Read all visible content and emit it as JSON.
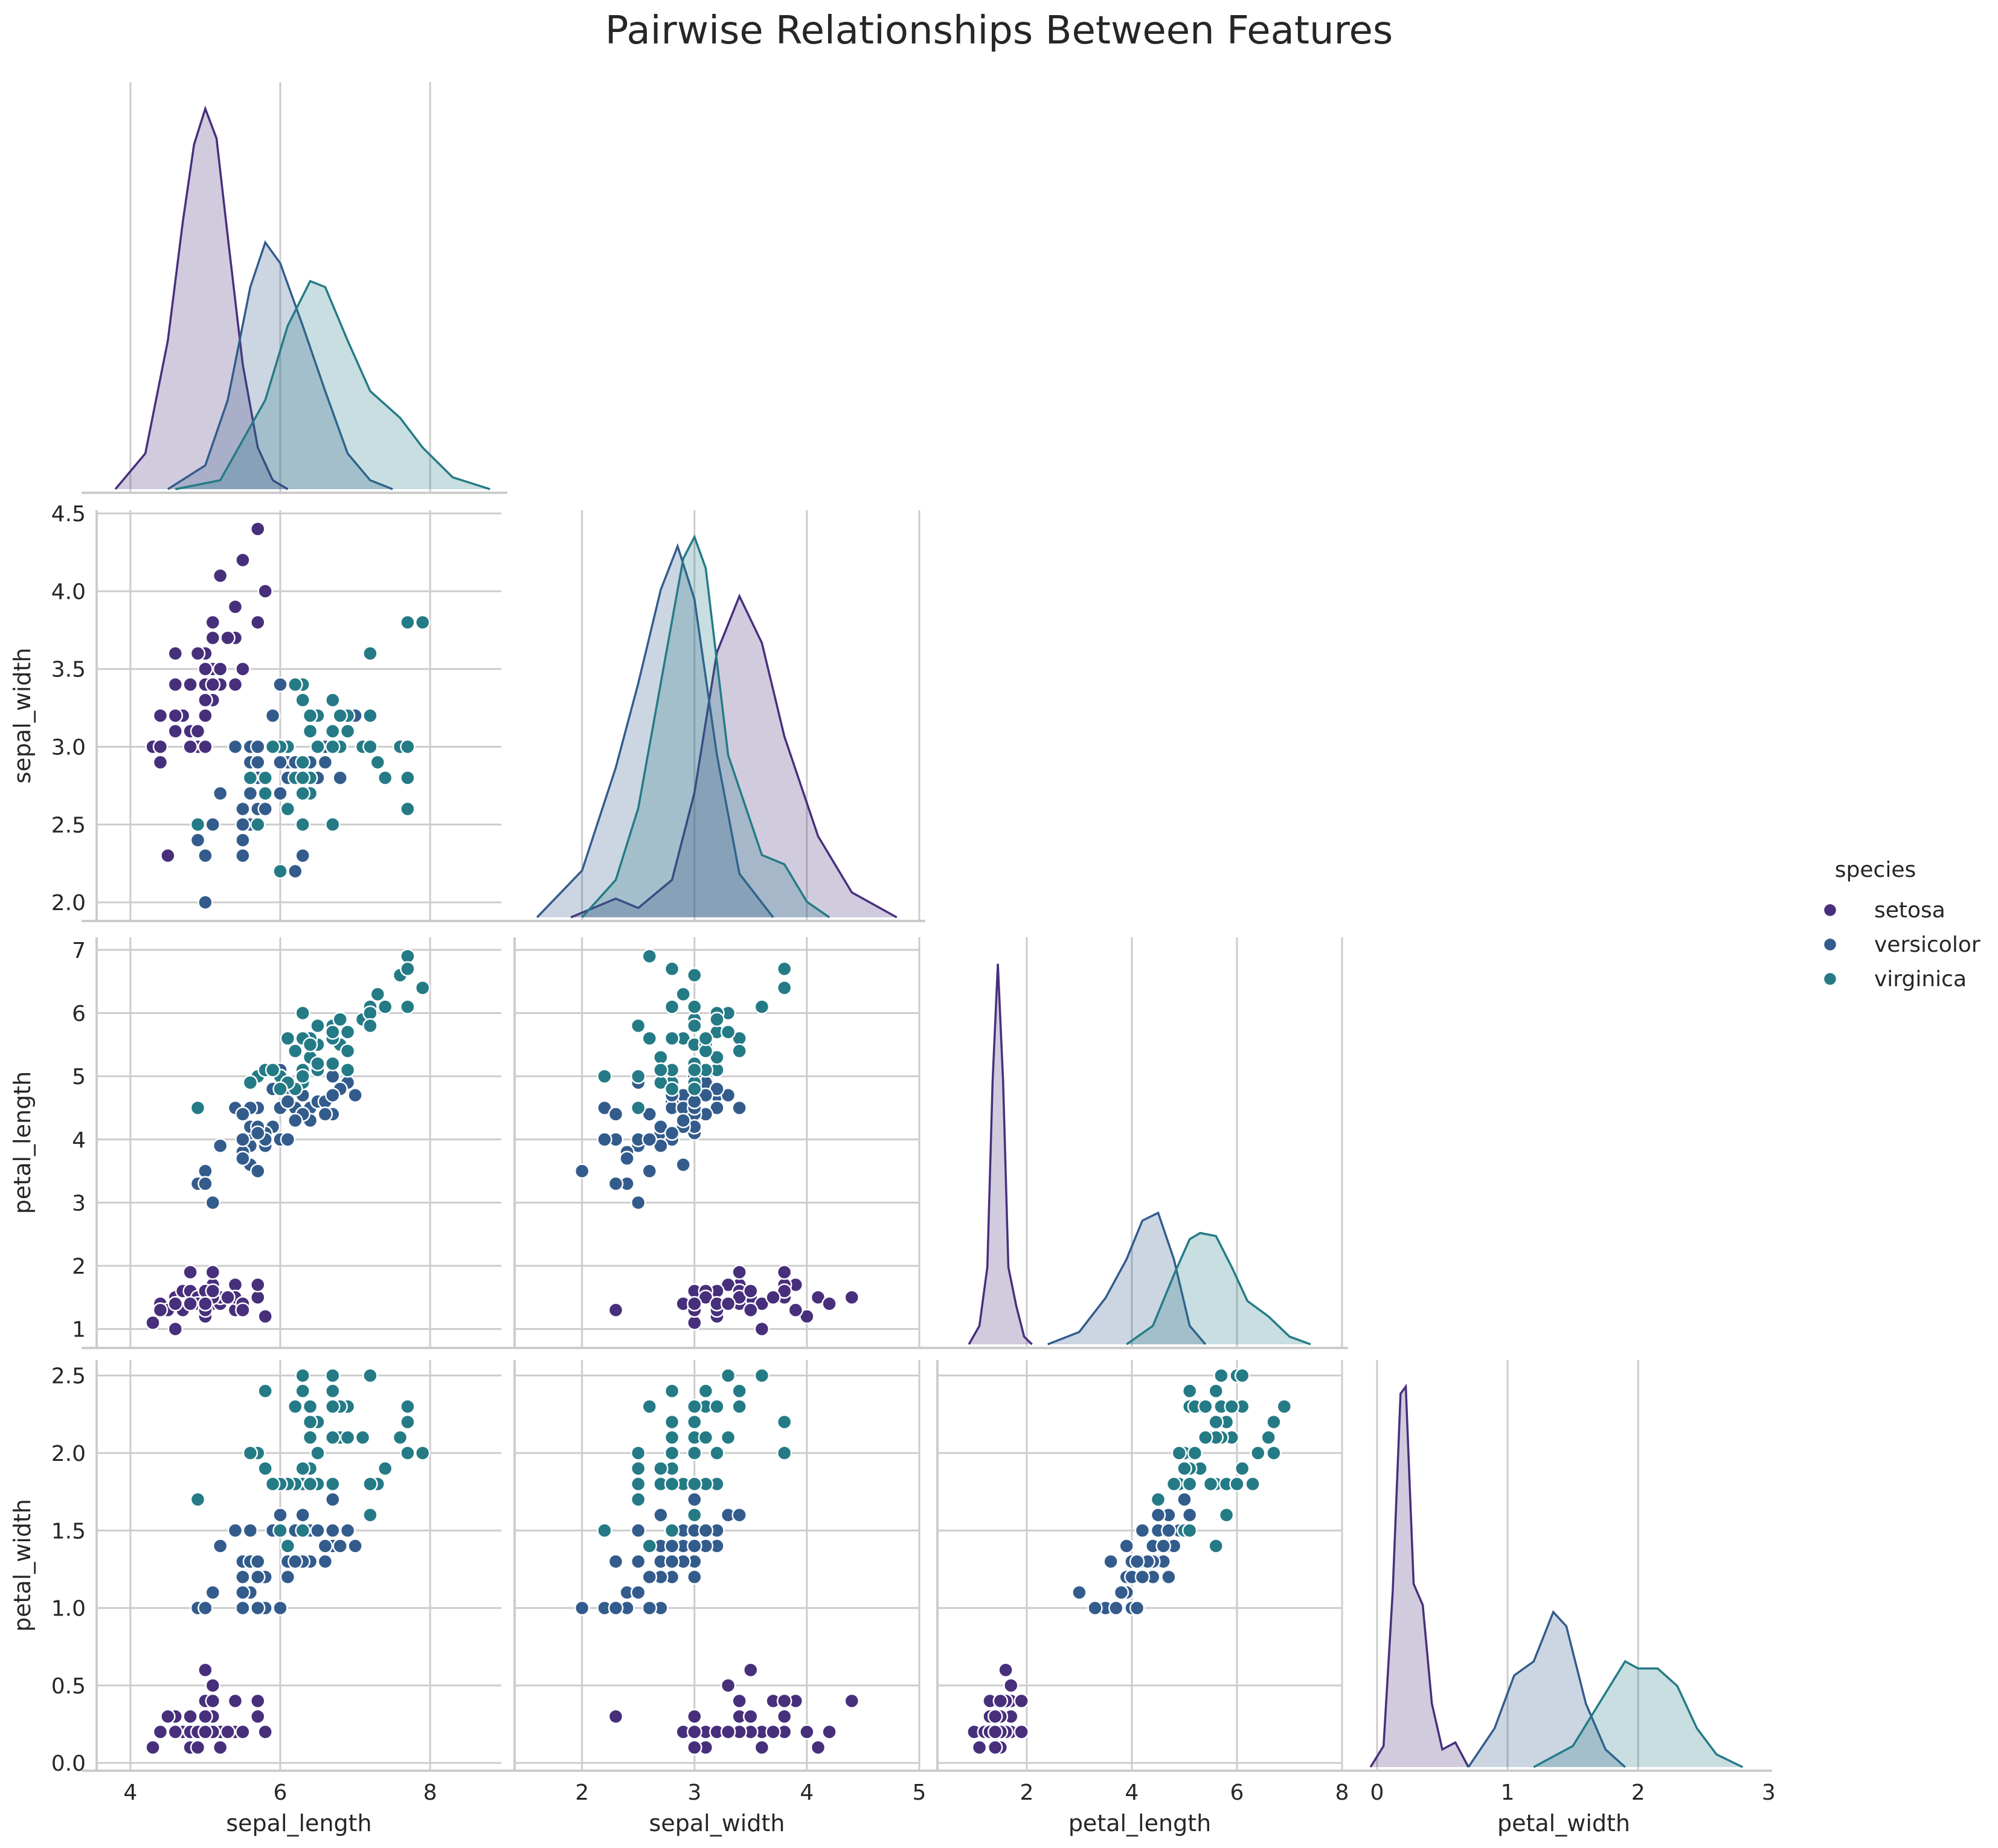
{
  "chart_data": {
    "type": "scatter",
    "title": "Pairwise Relationships Between Features",
    "variables": [
      "sepal_length",
      "sepal_width",
      "petal_length",
      "petal_width"
    ],
    "axes": {
      "sepal_length": {
        "lim": [
          3.55,
          8.95
        ],
        "ticks": [
          4,
          6,
          8
        ]
      },
      "sepal_width": {
        "lim": [
          1.4,
          5.0
        ],
        "ticks": [
          2,
          3,
          4,
          5
        ]
      },
      "sepal_width_y": {
        "lim": [
          1.88,
          4.52
        ],
        "ticks": [
          2.0,
          2.5,
          3.0,
          3.5,
          4.0,
          4.5
        ]
      },
      "petal_length": {
        "lim": [
          0.3,
          8.0
        ],
        "ticks": [
          2,
          4,
          6,
          8
        ],
        "ylim": [
          0.7,
          7.2
        ],
        "yticks": [
          1,
          2,
          3,
          4,
          5,
          6,
          7
        ]
      },
      "petal_width": {
        "lim": [
          -0.12,
          2.98
        ],
        "ticks": [
          0,
          1,
          2,
          3
        ],
        "ylim": [
          -0.05,
          2.6
        ],
        "yticks": [
          0.0,
          0.5,
          1.0,
          1.5,
          2.0,
          2.5
        ]
      }
    },
    "grid": true,
    "legend": {
      "title": "species",
      "placement": "right",
      "entries": [
        "setosa",
        "versicolor",
        "virginica"
      ]
    },
    "colors": {
      "setosa": "#482f7c",
      "versicolor": "#335c8c",
      "virginica": "#247b86"
    },
    "kde": {
      "sepal_length": {
        "setosa": {
          "x": [
            3.8,
            4.2,
            4.5,
            4.7,
            4.85,
            5.0,
            5.15,
            5.3,
            5.5,
            5.7,
            5.9,
            6.1
          ],
          "y": [
            0.0,
            0.12,
            0.5,
            0.9,
            1.16,
            1.28,
            1.18,
            0.85,
            0.42,
            0.14,
            0.03,
            0.0
          ]
        },
        "versicolor": {
          "x": [
            4.5,
            5.0,
            5.3,
            5.6,
            5.8,
            6.0,
            6.3,
            6.6,
            6.9,
            7.2,
            7.5
          ],
          "y": [
            0.0,
            0.08,
            0.3,
            0.68,
            0.83,
            0.76,
            0.55,
            0.33,
            0.12,
            0.03,
            0.0
          ]
        },
        "virginica": {
          "x": [
            4.6,
            5.2,
            5.8,
            6.1,
            6.4,
            6.6,
            6.9,
            7.2,
            7.6,
            7.9,
            8.3,
            8.8
          ],
          "y": [
            0.0,
            0.03,
            0.3,
            0.55,
            0.7,
            0.68,
            0.5,
            0.33,
            0.24,
            0.14,
            0.04,
            0.0
          ]
        }
      },
      "sepal_width": {
        "setosa": {
          "x": [
            1.9,
            2.3,
            2.5,
            2.8,
            3.0,
            3.2,
            3.4,
            3.6,
            3.8,
            4.1,
            4.4,
            4.8
          ],
          "y": [
            0.0,
            0.06,
            0.03,
            0.12,
            0.4,
            0.85,
            1.03,
            0.88,
            0.58,
            0.26,
            0.08,
            0.0
          ]
        },
        "versicolor": {
          "x": [
            1.6,
            2.0,
            2.3,
            2.5,
            2.7,
            2.85,
            3.0,
            3.2,
            3.4,
            3.7
          ],
          "y": [
            0.0,
            0.15,
            0.48,
            0.75,
            1.05,
            1.19,
            1.02,
            0.52,
            0.14,
            0.0
          ]
        },
        "virginica": {
          "x": [
            2.0,
            2.3,
            2.5,
            2.7,
            2.9,
            3.0,
            3.1,
            3.3,
            3.6,
            3.8,
            4.0,
            4.2
          ],
          "y": [
            0.0,
            0.12,
            0.35,
            0.75,
            1.15,
            1.22,
            1.12,
            0.52,
            0.2,
            0.17,
            0.05,
            0.0
          ]
        }
      },
      "petal_length": {
        "setosa": {
          "x": [
            0.9,
            1.1,
            1.25,
            1.35,
            1.45,
            1.55,
            1.65,
            1.8,
            1.95,
            2.1
          ],
          "y": [
            0.0,
            0.12,
            0.5,
            1.7,
            2.46,
            1.7,
            0.5,
            0.25,
            0.05,
            0.0
          ]
        },
        "versicolor": {
          "x": [
            2.4,
            3.0,
            3.5,
            3.9,
            4.2,
            4.5,
            4.8,
            5.1,
            5.4
          ],
          "y": [
            0.0,
            0.08,
            0.3,
            0.55,
            0.8,
            0.85,
            0.55,
            0.12,
            0.0
          ]
        },
        "virginica": {
          "x": [
            3.9,
            4.4,
            4.8,
            5.1,
            5.3,
            5.6,
            5.9,
            6.2,
            6.6,
            7.0,
            7.4
          ],
          "y": [
            0.0,
            0.12,
            0.45,
            0.68,
            0.72,
            0.7,
            0.5,
            0.28,
            0.18,
            0.05,
            0.0
          ]
        }
      },
      "petal_width": {
        "setosa": {
          "x": [
            -0.05,
            0.05,
            0.12,
            0.18,
            0.22,
            0.28,
            0.35,
            0.42,
            0.5,
            0.6,
            0.7
          ],
          "y": [
            0.0,
            0.3,
            2.5,
            5.3,
            5.4,
            2.6,
            2.3,
            0.9,
            0.25,
            0.35,
            0.0
          ]
        },
        "versicolor": {
          "x": [
            0.7,
            0.9,
            1.05,
            1.2,
            1.35,
            1.45,
            1.6,
            1.75,
            1.9
          ],
          "y": [
            0.0,
            0.55,
            1.3,
            1.5,
            2.2,
            2.0,
            0.9,
            0.25,
            0.0
          ]
        },
        "virginica": {
          "x": [
            1.2,
            1.5,
            1.7,
            1.9,
            2.0,
            2.15,
            2.3,
            2.45,
            2.6,
            2.8
          ],
          "y": [
            0.0,
            0.3,
            0.9,
            1.5,
            1.4,
            1.4,
            1.15,
            0.55,
            0.18,
            0.0
          ]
        }
      }
    },
    "points": {
      "setosa": [
        [
          5.1,
          3.5,
          1.4,
          0.2
        ],
        [
          4.9,
          3.0,
          1.4,
          0.2
        ],
        [
          4.7,
          3.2,
          1.3,
          0.2
        ],
        [
          4.6,
          3.1,
          1.5,
          0.2
        ],
        [
          5.0,
          3.6,
          1.4,
          0.2
        ],
        [
          5.4,
          3.9,
          1.7,
          0.4
        ],
        [
          4.6,
          3.4,
          1.4,
          0.3
        ],
        [
          5.0,
          3.4,
          1.5,
          0.2
        ],
        [
          4.4,
          2.9,
          1.4,
          0.2
        ],
        [
          4.9,
          3.1,
          1.5,
          0.1
        ],
        [
          5.4,
          3.7,
          1.5,
          0.2
        ],
        [
          4.8,
          3.4,
          1.6,
          0.2
        ],
        [
          4.8,
          3.0,
          1.4,
          0.1
        ],
        [
          4.3,
          3.0,
          1.1,
          0.1
        ],
        [
          5.8,
          4.0,
          1.2,
          0.2
        ],
        [
          5.7,
          4.4,
          1.5,
          0.4
        ],
        [
          5.4,
          3.9,
          1.3,
          0.4
        ],
        [
          5.1,
          3.5,
          1.4,
          0.3
        ],
        [
          5.7,
          3.8,
          1.7,
          0.3
        ],
        [
          5.1,
          3.8,
          1.5,
          0.3
        ],
        [
          5.4,
          3.4,
          1.7,
          0.2
        ],
        [
          5.1,
          3.7,
          1.5,
          0.4
        ],
        [
          4.6,
          3.6,
          1.0,
          0.2
        ],
        [
          5.1,
          3.3,
          1.7,
          0.5
        ],
        [
          4.8,
          3.4,
          1.9,
          0.2
        ],
        [
          5.0,
          3.0,
          1.6,
          0.2
        ],
        [
          5.0,
          3.4,
          1.6,
          0.4
        ],
        [
          5.2,
          3.5,
          1.5,
          0.2
        ],
        [
          5.2,
          3.4,
          1.4,
          0.2
        ],
        [
          4.7,
          3.2,
          1.6,
          0.2
        ],
        [
          4.8,
          3.1,
          1.6,
          0.2
        ],
        [
          5.4,
          3.4,
          1.5,
          0.4
        ],
        [
          5.2,
          4.1,
          1.5,
          0.1
        ],
        [
          5.5,
          4.2,
          1.4,
          0.2
        ],
        [
          4.9,
          3.1,
          1.5,
          0.2
        ],
        [
          5.0,
          3.2,
          1.2,
          0.2
        ],
        [
          5.5,
          3.5,
          1.3,
          0.2
        ],
        [
          4.9,
          3.6,
          1.4,
          0.1
        ],
        [
          4.4,
          3.0,
          1.3,
          0.2
        ],
        [
          5.1,
          3.4,
          1.5,
          0.2
        ],
        [
          5.0,
          3.5,
          1.3,
          0.3
        ],
        [
          4.5,
          2.3,
          1.3,
          0.3
        ],
        [
          4.4,
          3.2,
          1.3,
          0.2
        ],
        [
          5.0,
          3.5,
          1.6,
          0.6
        ],
        [
          5.1,
          3.8,
          1.9,
          0.4
        ],
        [
          4.8,
          3.0,
          1.4,
          0.3
        ],
        [
          5.1,
          3.8,
          1.6,
          0.2
        ],
        [
          4.6,
          3.2,
          1.4,
          0.2
        ],
        [
          5.3,
          3.7,
          1.5,
          0.2
        ],
        [
          5.0,
          3.3,
          1.4,
          0.2
        ]
      ],
      "versicolor": [
        [
          7.0,
          3.2,
          4.7,
          1.4
        ],
        [
          6.4,
          3.2,
          4.5,
          1.5
        ],
        [
          6.9,
          3.1,
          4.9,
          1.5
        ],
        [
          5.5,
          2.3,
          4.0,
          1.3
        ],
        [
          6.5,
          2.8,
          4.6,
          1.5
        ],
        [
          5.7,
          2.8,
          4.5,
          1.3
        ],
        [
          6.3,
          3.3,
          4.7,
          1.6
        ],
        [
          4.9,
          2.4,
          3.3,
          1.0
        ],
        [
          6.6,
          2.9,
          4.6,
          1.3
        ],
        [
          5.2,
          2.7,
          3.9,
          1.4
        ],
        [
          5.0,
          2.0,
          3.5,
          1.0
        ],
        [
          5.9,
          3.0,
          4.2,
          1.5
        ],
        [
          6.0,
          2.2,
          4.0,
          1.0
        ],
        [
          6.1,
          2.9,
          4.7,
          1.4
        ],
        [
          5.6,
          2.9,
          3.6,
          1.3
        ],
        [
          6.7,
          3.1,
          4.4,
          1.4
        ],
        [
          5.6,
          3.0,
          4.5,
          1.5
        ],
        [
          5.8,
          2.7,
          4.1,
          1.0
        ],
        [
          6.2,
          2.2,
          4.5,
          1.5
        ],
        [
          5.6,
          2.5,
          3.9,
          1.1
        ],
        [
          5.9,
          3.2,
          4.8,
          1.8
        ],
        [
          6.1,
          2.8,
          4.0,
          1.3
        ],
        [
          6.3,
          2.5,
          4.9,
          1.5
        ],
        [
          6.1,
          2.8,
          4.7,
          1.2
        ],
        [
          6.4,
          2.9,
          4.3,
          1.3
        ],
        [
          6.6,
          3.0,
          4.4,
          1.4
        ],
        [
          6.8,
          2.8,
          4.8,
          1.4
        ],
        [
          6.7,
          3.0,
          5.0,
          1.7
        ],
        [
          6.0,
          2.9,
          4.5,
          1.5
        ],
        [
          5.7,
          2.6,
          3.5,
          1.0
        ],
        [
          5.5,
          2.4,
          3.8,
          1.1
        ],
        [
          5.5,
          2.4,
          3.7,
          1.0
        ],
        [
          5.8,
          2.7,
          3.9,
          1.2
        ],
        [
          6.0,
          2.7,
          5.1,
          1.6
        ],
        [
          5.4,
          3.0,
          4.5,
          1.5
        ],
        [
          6.0,
          3.4,
          4.5,
          1.6
        ],
        [
          6.7,
          3.1,
          4.7,
          1.5
        ],
        [
          6.3,
          2.3,
          4.4,
          1.3
        ],
        [
          5.6,
          3.0,
          4.1,
          1.3
        ],
        [
          5.5,
          2.5,
          4.0,
          1.3
        ],
        [
          5.5,
          2.6,
          4.4,
          1.2
        ],
        [
          6.1,
          3.0,
          4.6,
          1.4
        ],
        [
          5.8,
          2.6,
          4.0,
          1.2
        ],
        [
          5.0,
          2.3,
          3.3,
          1.0
        ],
        [
          5.6,
          2.7,
          4.2,
          1.3
        ],
        [
          5.7,
          3.0,
          4.2,
          1.2
        ],
        [
          5.7,
          2.9,
          4.2,
          1.3
        ],
        [
          6.2,
          2.9,
          4.3,
          1.3
        ],
        [
          5.1,
          2.5,
          3.0,
          1.1
        ],
        [
          5.7,
          2.8,
          4.1,
          1.3
        ]
      ],
      "virginica": [
        [
          6.3,
          3.3,
          6.0,
          2.5
        ],
        [
          5.8,
          2.7,
          5.1,
          1.9
        ],
        [
          7.1,
          3.0,
          5.9,
          2.1
        ],
        [
          6.3,
          2.9,
          5.6,
          1.8
        ],
        [
          6.5,
          3.0,
          5.8,
          2.2
        ],
        [
          7.6,
          3.0,
          6.6,
          2.1
        ],
        [
          4.9,
          2.5,
          4.5,
          1.7
        ],
        [
          7.3,
          2.9,
          6.3,
          1.8
        ],
        [
          6.7,
          2.5,
          5.8,
          1.8
        ],
        [
          7.2,
          3.6,
          6.1,
          2.5
        ],
        [
          6.5,
          3.2,
          5.1,
          2.0
        ],
        [
          6.4,
          2.7,
          5.3,
          1.9
        ],
        [
          6.8,
          3.0,
          5.5,
          2.1
        ],
        [
          5.7,
          2.5,
          5.0,
          2.0
        ],
        [
          5.8,
          2.8,
          5.1,
          2.4
        ],
        [
          6.4,
          3.2,
          5.3,
          2.3
        ],
        [
          6.5,
          3.0,
          5.5,
          1.8
        ],
        [
          7.7,
          3.8,
          6.7,
          2.2
        ],
        [
          7.7,
          2.6,
          6.9,
          2.3
        ],
        [
          6.0,
          2.2,
          5.0,
          1.5
        ],
        [
          6.9,
          3.2,
          5.7,
          2.3
        ],
        [
          5.6,
          2.8,
          4.9,
          2.0
        ],
        [
          7.7,
          2.8,
          6.7,
          2.0
        ],
        [
          6.3,
          2.7,
          4.9,
          1.8
        ],
        [
          6.7,
          3.3,
          5.7,
          2.1
        ],
        [
          7.2,
          3.2,
          6.0,
          1.8
        ],
        [
          6.2,
          2.8,
          4.8,
          1.8
        ],
        [
          6.1,
          3.0,
          4.9,
          1.8
        ],
        [
          6.4,
          2.8,
          5.6,
          2.1
        ],
        [
          7.2,
          3.0,
          5.8,
          1.6
        ],
        [
          7.4,
          2.8,
          6.1,
          1.9
        ],
        [
          7.9,
          3.8,
          6.4,
          2.0
        ],
        [
          6.4,
          2.8,
          5.6,
          2.2
        ],
        [
          6.3,
          2.8,
          5.1,
          1.5
        ],
        [
          6.1,
          2.6,
          5.6,
          1.4
        ],
        [
          7.7,
          3.0,
          6.1,
          2.3
        ],
        [
          6.3,
          3.4,
          5.6,
          2.4
        ],
        [
          6.4,
          3.1,
          5.5,
          1.8
        ],
        [
          6.0,
          3.0,
          4.8,
          1.8
        ],
        [
          6.9,
          3.1,
          5.4,
          2.1
        ],
        [
          6.7,
          3.1,
          5.6,
          2.4
        ],
        [
          6.9,
          3.1,
          5.1,
          2.3
        ],
        [
          5.8,
          2.7,
          5.1,
          1.9
        ],
        [
          6.8,
          3.2,
          5.9,
          2.3
        ],
        [
          6.7,
          3.3,
          5.7,
          2.5
        ],
        [
          6.7,
          3.0,
          5.2,
          2.3
        ],
        [
          6.3,
          2.5,
          5.0,
          1.9
        ],
        [
          6.5,
          3.0,
          5.2,
          2.0
        ],
        [
          6.2,
          3.4,
          5.4,
          2.3
        ],
        [
          5.9,
          3.0,
          5.1,
          1.8
        ]
      ]
    }
  }
}
